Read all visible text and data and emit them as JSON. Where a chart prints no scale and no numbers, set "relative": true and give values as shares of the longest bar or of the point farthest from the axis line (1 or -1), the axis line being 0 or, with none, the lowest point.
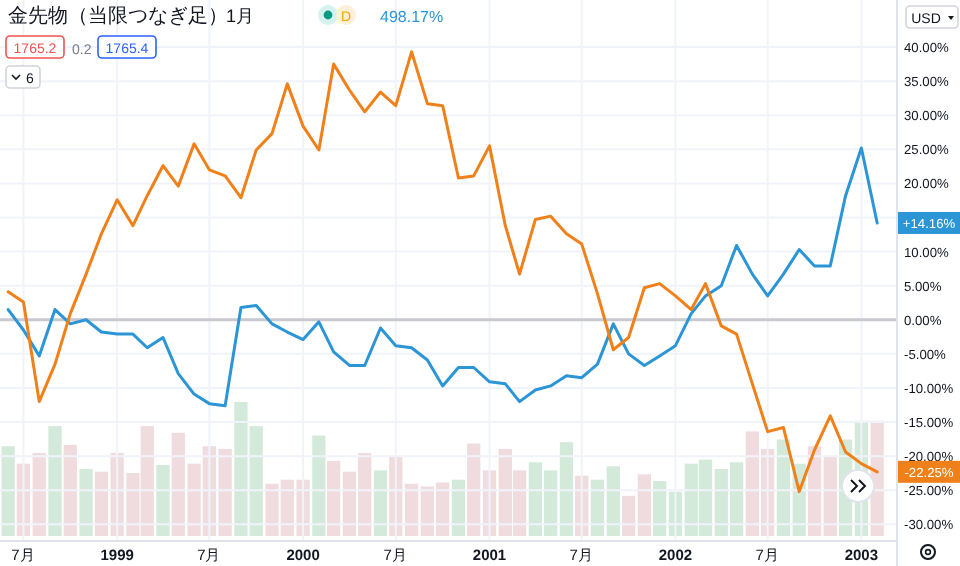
{
  "chart_data": [
    {
      "type": "line",
      "title": "金先物（当限つなぎ足）",
      "subtitle": "1月",
      "x": [
        "1998-06",
        "1998-07",
        "1998-08",
        "1998-09",
        "1998-10",
        "1998-11",
        "1998-12",
        "1999-01",
        "1999-02",
        "1999-03",
        "1999-04",
        "1999-05",
        "1999-06",
        "1999-07",
        "1999-08",
        "1999-09",
        "1999-10",
        "1999-11",
        "1999-12",
        "2000-01",
        "2000-02",
        "2000-03",
        "2000-04",
        "2000-05",
        "2000-06",
        "2000-07",
        "2000-08",
        "2000-09",
        "2000-10",
        "2000-11",
        "2000-12",
        "2001-01",
        "2001-02",
        "2001-03",
        "2001-04",
        "2001-05",
        "2001-06",
        "2001-07",
        "2001-08",
        "2001-09",
        "2001-10",
        "2001-11",
        "2001-12",
        "2002-01",
        "2002-02",
        "2002-03",
        "2002-04",
        "2002-05",
        "2002-06",
        "2002-07",
        "2002-08",
        "2002-09",
        "2002-10",
        "2002-11",
        "2002-12",
        "2003-01",
        "2003-02"
      ],
      "series": [
        {
          "color": "#2b95d6",
          "values": [
            1.5,
            -1.5,
            -5.3,
            1.5,
            -0.6,
            0,
            -1.8,
            -2.1,
            -2.1,
            -4.1,
            -2.6,
            -7.9,
            -10.9,
            -12.3,
            -12.6,
            1.8,
            2.1,
            -0.6,
            -1.8,
            -2.9,
            -0.3,
            -4.7,
            -6.7,
            -6.7,
            -1.2,
            -3.8,
            -4.1,
            -5.9,
            -9.7,
            -7.0,
            -7.0,
            -9.1,
            -9.4,
            -12.0,
            -10.3,
            -9.7,
            -8.2,
            -8.5,
            -6.5,
            -0.6,
            -5.0,
            -6.7,
            -5.3,
            -3.8,
            0.9,
            3.5,
            5.0,
            10.9,
            6.7,
            3.5,
            6.7,
            10.3,
            7.9,
            7.9,
            18.2,
            25.2,
            14.2
          ]
        },
        {
          "color": "#f0801a",
          "values": [
            4.1,
            2.6,
            -12.0,
            -6.5,
            0.9,
            6.7,
            12.6,
            17.6,
            13.8,
            18.2,
            22.6,
            19.6,
            25.8,
            22.0,
            21.1,
            17.9,
            24.9,
            27.3,
            34.6,
            28.4,
            24.9,
            37.5,
            33.7,
            30.5,
            33.4,
            31.4,
            39.3,
            31.7,
            31.4,
            20.8,
            21.1,
            25.5,
            13.8,
            6.7,
            14.7,
            15.2,
            12.6,
            11.1,
            3.8,
            -4.4,
            -2.6,
            4.7,
            5.3,
            3.5,
            1.5,
            5.3,
            -0.9,
            -2.1,
            -9.4,
            -16.4,
            -15.8,
            -25.2,
            -19.1,
            -14.1,
            -19.4,
            -21.1,
            -22.3
          ]
        }
      ],
      "xlim": [
        "1998-05-16",
        "2003-03-10"
      ],
      "xticks": [
        {
          "value": "1998-07",
          "label": "7月"
        },
        {
          "value": "1999-01",
          "label": "1999"
        },
        {
          "value": "1999-07",
          "label": "7月"
        },
        {
          "value": "2000-01",
          "label": "2000"
        },
        {
          "value": "2000-07",
          "label": "7月"
        },
        {
          "value": "2001-01",
          "label": "2001"
        },
        {
          "value": "2001-07",
          "label": "7月"
        },
        {
          "value": "2002-01",
          "label": "2002"
        },
        {
          "value": "2002-07",
          "label": "7月"
        },
        {
          "value": "2003-01",
          "label": "2003"
        }
      ],
      "ylim": [
        -32.3,
        46.9
      ],
      "yticks": [
        {
          "value": -30,
          "label": "-30.00%"
        },
        {
          "value": -25,
          "label": "-25.00%"
        },
        {
          "value": -20,
          "label": "-20.00%"
        },
        {
          "value": -15,
          "label": "-15.00%"
        },
        {
          "value": -10,
          "label": "-10.00%"
        },
        {
          "value": -5,
          "label": "-5.00%"
        },
        {
          "value": 0,
          "label": "0.00%"
        },
        {
          "value": 5,
          "label": "5.00%"
        },
        {
          "value": 10,
          "label": "10.00%"
        },
        {
          "value": 15,
          "label": null
        },
        {
          "value": 20,
          "label": "20.00%"
        },
        {
          "value": 25,
          "label": "25.00%"
        },
        {
          "value": 30,
          "label": "30.00%"
        },
        {
          "value": 35,
          "label": "35.00%"
        },
        {
          "value": 40,
          "label": "40.00%"
        }
      ],
      "ref_lines": [
        {
          "axis": "y",
          "value": 0,
          "color": "#c8cad0"
        }
      ],
      "grid": true,
      "marker": "none",
      "line_style": "solid",
      "annotations": [
        "D",
        "498.17%",
        "1765.2",
        "0.2",
        "1765.4",
        "6",
        "USD",
        {
          "text": "+14.16%",
          "x": "2003-02",
          "y": 14.2
        },
        {
          "text": "-22.25%",
          "x": "2003-02",
          "y": -22.3
        }
      ]
    },
    {
      "type": "bar",
      "relative": true,
      "x": [
        "1998-06",
        "1998-07",
        "1998-08",
        "1998-09",
        "1998-10",
        "1998-11",
        "1998-12",
        "1999-01",
        "1999-02",
        "1999-03",
        "1999-04",
        "1999-05",
        "1999-06",
        "1999-07",
        "1999-08",
        "1999-09",
        "1999-10",
        "1999-11",
        "1999-12",
        "2000-01",
        "2000-02",
        "2000-03",
        "2000-04",
        "2000-05",
        "2000-06",
        "2000-07",
        "2000-08",
        "2000-09",
        "2000-10",
        "2000-11",
        "2000-12",
        "2001-01",
        "2001-02",
        "2001-03",
        "2001-04",
        "2001-05",
        "2001-06",
        "2001-07",
        "2001-08",
        "2001-09",
        "2001-10",
        "2001-11",
        "2001-12",
        "2002-01",
        "2002-02",
        "2002-03",
        "2002-04",
        "2002-05",
        "2002-06",
        "2002-07",
        "2002-08",
        "2002-09",
        "2002-10",
        "2002-11",
        "2002-12",
        "2003-01",
        "2003-02"
      ],
      "xlim": [
        "1998-05-16",
        "2003-03-10"
      ],
      "values": [
        0.67,
        0.54,
        0.62,
        0.82,
        0.68,
        0.5,
        0.48,
        0.62,
        0.47,
        0.82,
        0.53,
        0.77,
        0.54,
        0.67,
        0.65,
        1,
        0.82,
        0.39,
        0.42,
        0.42,
        0.75,
        0.56,
        0.48,
        0.62,
        0.49,
        0.6,
        0.39,
        0.37,
        0.4,
        0.42,
        0.69,
        0.49,
        0.65,
        0.49,
        0.55,
        0.49,
        0.7,
        0.45,
        0.42,
        0.52,
        0.3,
        0.46,
        0.41,
        0.33,
        0.54,
        0.57,
        0.5,
        0.55,
        0.78,
        0.65,
        0.72,
        0.54,
        0.67,
        0.6,
        0.72,
        0.86,
        0.86
      ],
      "colors": [
        "#d3eadb",
        "#f0dcdf",
        "#f0dcdf",
        "#d3eadb",
        "#f0dcdf",
        "#d3eadb",
        "#f0dcdf",
        "#f0dcdf",
        "#f0dcdf",
        "#f0dcdf",
        "#d3eadb",
        "#f0dcdf",
        "#f0dcdf",
        "#f0dcdf",
        "#f0dcdf",
        "#d3eadb",
        "#d3eadb",
        "#f0dcdf",
        "#f0dcdf",
        "#f0dcdf",
        "#d3eadb",
        "#f0dcdf",
        "#f0dcdf",
        "#f0dcdf",
        "#d3eadb",
        "#f0dcdf",
        "#f0dcdf",
        "#f0dcdf",
        "#f0dcdf",
        "#d3eadb",
        "#f0dcdf",
        "#f0dcdf",
        "#f0dcdf",
        "#f0dcdf",
        "#d3eadb",
        "#d3eadb",
        "#d3eadb",
        "#f0dcdf",
        "#d3eadb",
        "#d3eadb",
        "#f0dcdf",
        "#f0dcdf",
        "#d3eadb",
        "#d3eadb",
        "#d3eadb",
        "#d3eadb",
        "#d3eadb",
        "#d3eadb",
        "#f0dcdf",
        "#f0dcdf",
        "#d3eadb",
        "#d3eadb",
        "#f0dcdf",
        "#f0dcdf",
        "#d3eadb",
        "#d3eadb",
        "#f0dcdf"
      ]
    }
  ]
}
